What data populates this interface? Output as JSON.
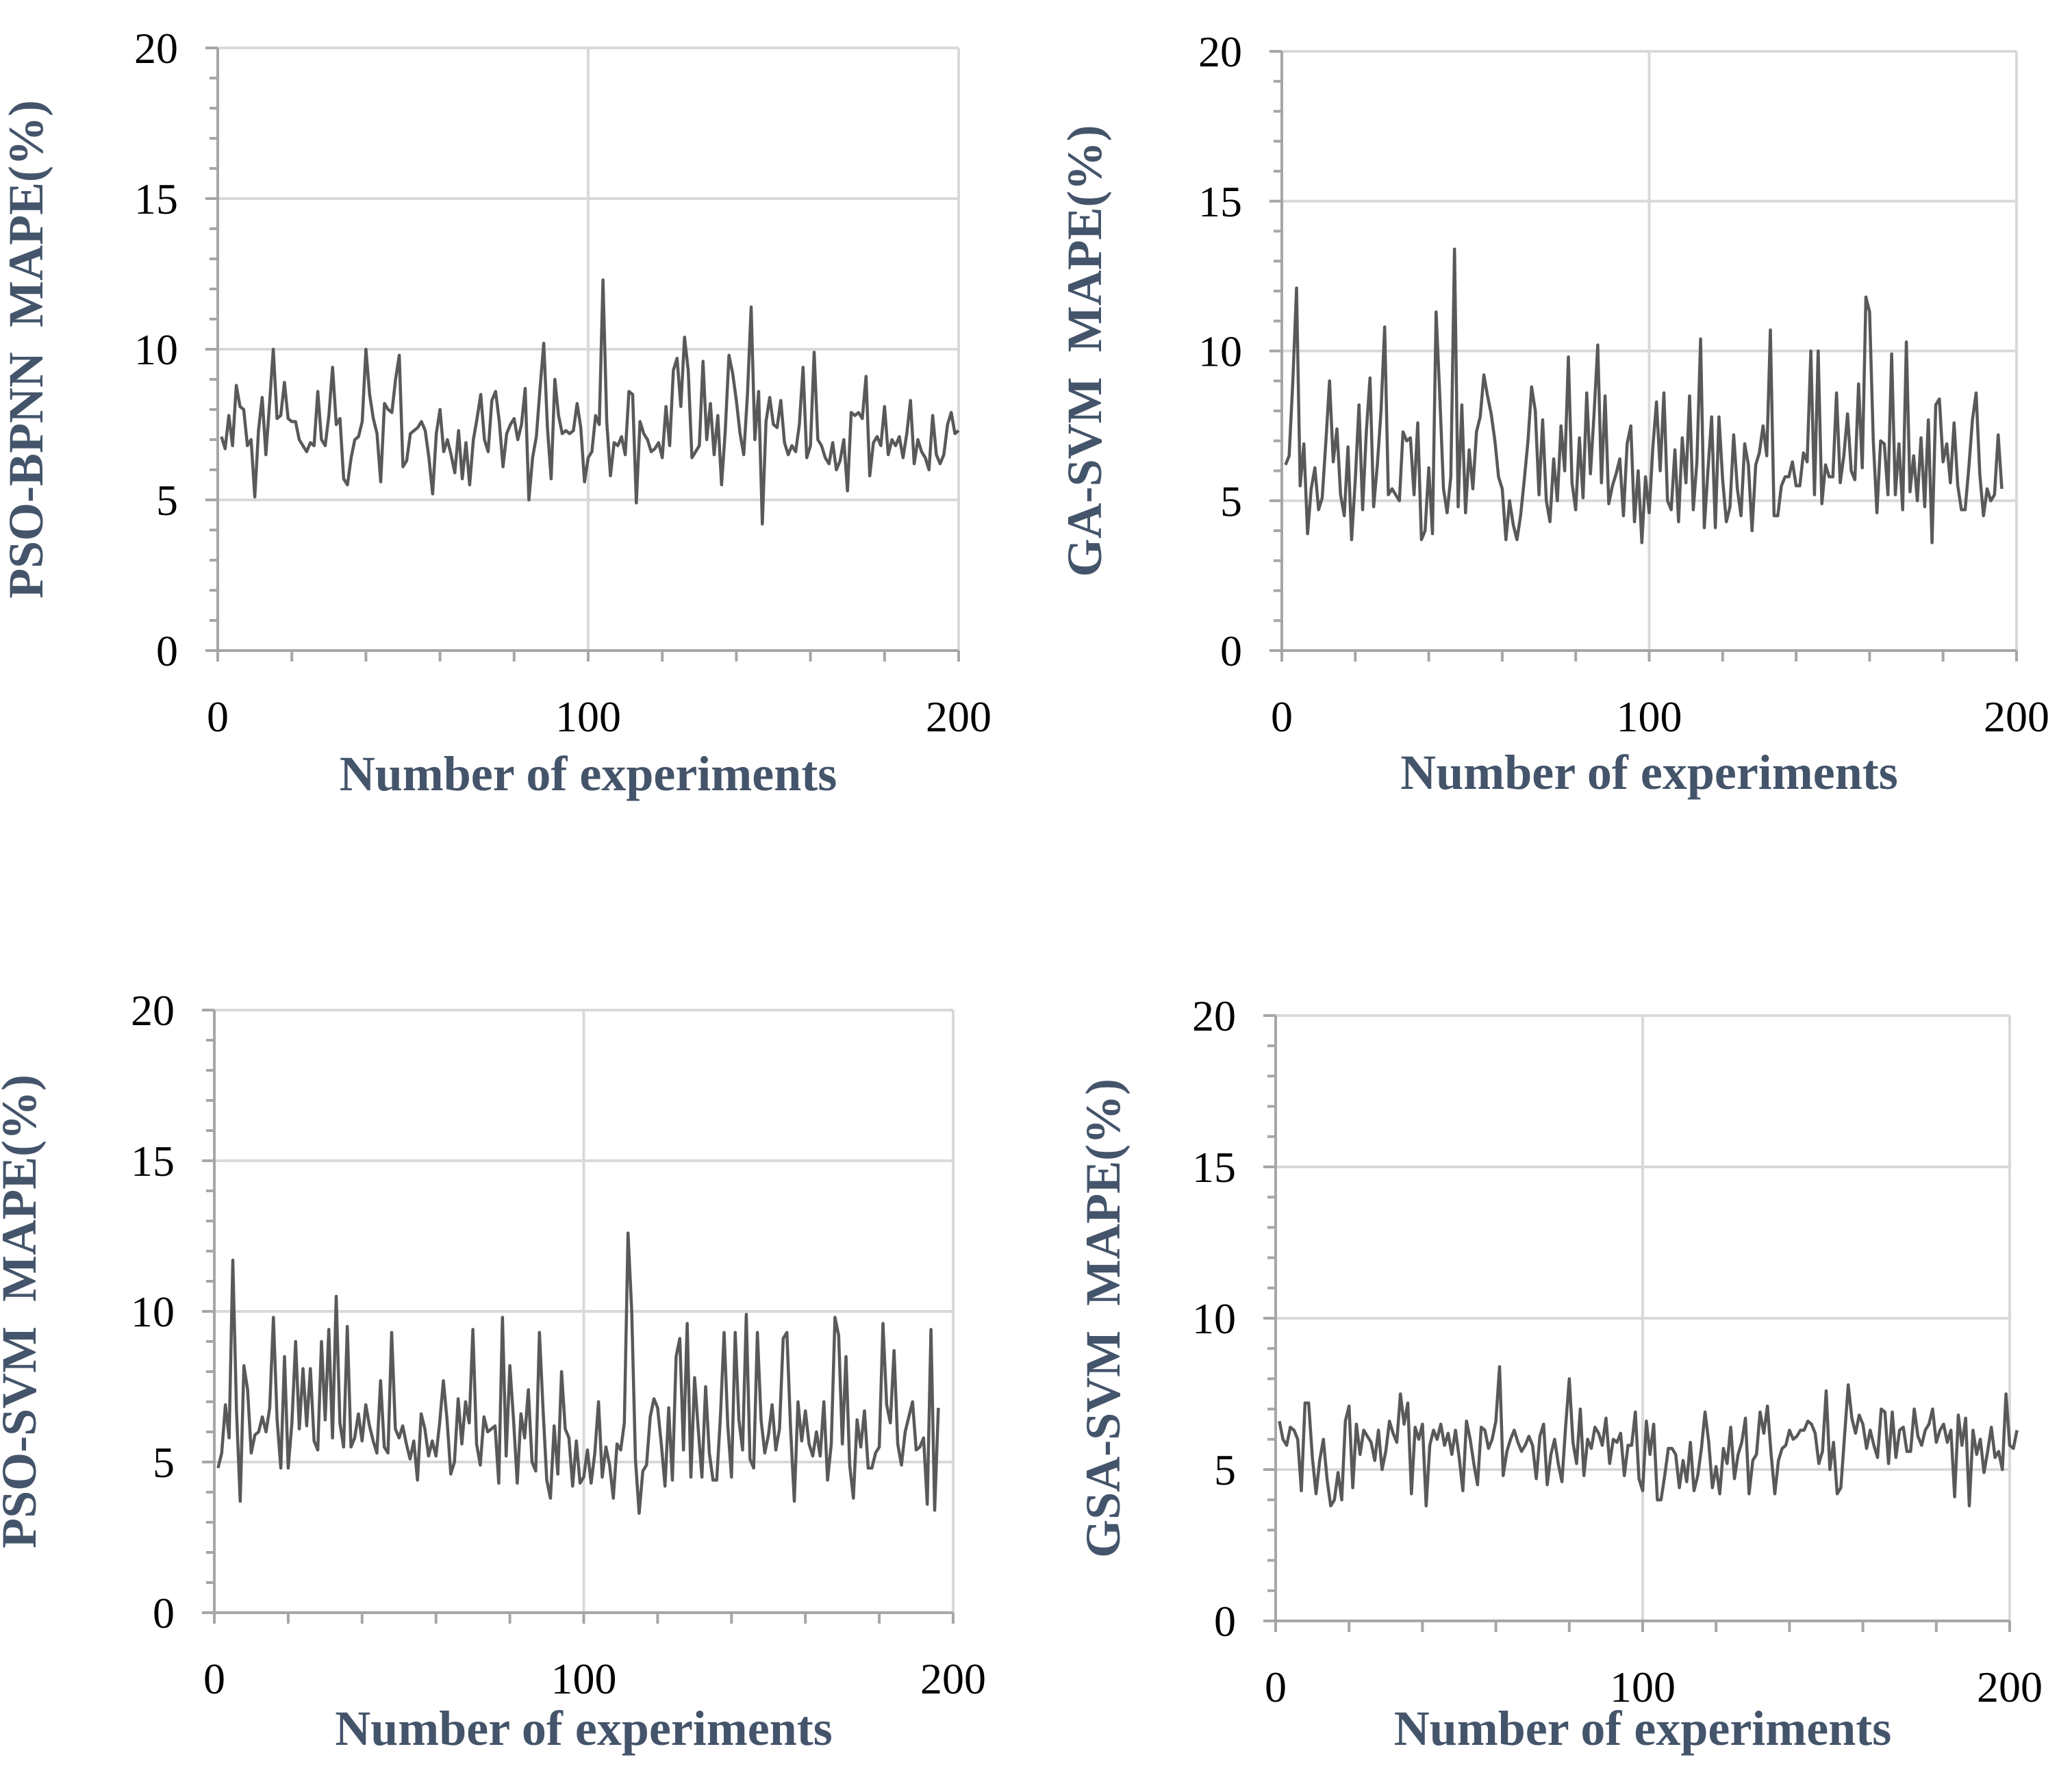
{
  "chart_data": [
    {
      "type": "line",
      "ylabel": "PSO-BPNN MAPE(%)",
      "xlabel": "Number of experiments",
      "xlim": [
        0,
        200
      ],
      "ylim": [
        0,
        20
      ],
      "xticks": [
        "0",
        "100",
        "200"
      ],
      "yticks": [
        "0",
        "5",
        "10",
        "15",
        "20"
      ],
      "grid": true,
      "line_color": "#595959",
      "series": [
        {
          "name": "PSO-BPNN",
          "x_start": 1,
          "x_step": 1,
          "values": [
            7.1,
            6.7,
            7.8,
            6.8,
            8.8,
            8.1,
            8.0,
            6.8,
            7.0,
            5.1,
            7.3,
            8.4,
            6.5,
            8.2,
            10.0,
            7.7,
            7.8,
            8.9,
            7.7,
            7.6,
            7.6,
            7.0,
            6.8,
            6.6,
            6.9,
            6.8,
            8.6,
            7.0,
            6.8,
            7.8,
            9.4,
            7.5,
            7.7,
            5.7,
            5.5,
            6.4,
            7.0,
            7.1,
            7.6,
            10.0,
            8.5,
            7.7,
            7.2,
            5.6,
            8.2,
            8.0,
            7.9,
            9.0,
            9.8,
            6.1,
            6.3,
            7.2,
            7.3,
            7.4,
            7.6,
            7.3,
            6.4,
            5.2,
            7.2,
            8.0,
            6.6,
            7.0,
            6.5,
            5.9,
            7.3,
            5.7,
            6.9,
            5.5,
            7.0,
            7.7,
            8.5,
            7.0,
            6.6,
            8.3,
            8.6,
            7.6,
            6.1,
            7.2,
            7.5,
            7.7,
            7.0,
            7.5,
            8.7,
            5.0,
            6.4,
            7.1,
            8.7,
            10.2,
            7.4,
            5.7,
            9.0,
            7.8,
            7.2,
            7.3,
            7.2,
            7.3,
            8.2,
            7.4,
            5.6,
            6.4,
            6.6,
            7.8,
            7.5,
            12.3,
            7.6,
            5.8,
            6.9,
            6.8,
            7.1,
            6.5,
            8.6,
            8.5,
            4.9,
            7.6,
            7.2,
            7.0,
            6.6,
            6.7,
            6.9,
            6.4,
            8.1,
            6.8,
            9.3,
            9.7,
            8.1,
            10.4,
            9.3,
            6.4,
            6.6,
            6.8,
            9.6,
            7.0,
            8.2,
            6.5,
            7.8,
            5.5,
            7.3,
            9.8,
            9.2,
            8.3,
            7.2,
            6.5,
            8.5,
            11.4,
            7.0,
            8.6,
            4.2,
            7.6,
            8.4,
            7.5,
            7.4,
            8.3,
            6.9,
            6.5,
            6.8,
            6.6,
            7.5,
            9.4,
            6.4,
            6.8,
            9.9,
            7.0,
            6.8,
            6.4,
            6.2,
            6.9,
            6.0,
            6.3,
            7.0,
            5.3,
            7.9,
            7.8,
            7.9,
            7.7,
            9.1,
            5.8,
            6.9,
            7.1,
            6.8,
            8.1,
            6.5,
            7.0,
            6.8,
            7.1,
            6.4,
            7.2,
            8.3,
            6.2,
            7.0,
            6.6,
            6.4,
            6.0,
            7.8,
            6.5,
            6.2,
            6.5,
            7.5,
            7.9,
            7.2,
            7.3
          ]
        }
      ]
    },
    {
      "type": "line",
      "ylabel": "GA-SVM MAPE(%)",
      "xlabel": "Number of experiments",
      "xlim": [
        0,
        200
      ],
      "ylim": [
        0,
        20
      ],
      "xticks": [
        "0",
        "100",
        "200"
      ],
      "yticks": [
        "0",
        "5",
        "10",
        "15",
        "20"
      ],
      "grid": true,
      "line_color": "#595959",
      "series": [
        {
          "name": "GA-SVM",
          "x_start": 1,
          "x_step": 1,
          "values": [
            6.2,
            6.5,
            9.0,
            12.1,
            5.5,
            6.9,
            3.9,
            5.4,
            6.1,
            4.7,
            5.1,
            7.0,
            9.0,
            6.3,
            7.4,
            5.2,
            4.5,
            6.8,
            3.7,
            5.7,
            8.2,
            4.7,
            7.3,
            9.1,
            4.8,
            6.2,
            8.0,
            10.8,
            5.2,
            5.4,
            5.2,
            5.0,
            7.3,
            7.0,
            7.1,
            5.2,
            7.6,
            3.7,
            4.0,
            6.1,
            3.9,
            11.3,
            8.5,
            5.4,
            4.6,
            5.8,
            13.4,
            4.8,
            8.2,
            4.6,
            6.7,
            5.4,
            7.3,
            7.8,
            9.2,
            8.5,
            7.9,
            7.0,
            5.8,
            5.4,
            3.7,
            5.0,
            4.2,
            3.7,
            4.5,
            5.7,
            7.0,
            8.8,
            8.0,
            5.2,
            7.7,
            5.0,
            4.3,
            6.4,
            5.0,
            7.5,
            6.0,
            9.8,
            5.6,
            4.7,
            7.1,
            5.1,
            8.6,
            5.9,
            7.9,
            10.2,
            5.6,
            8.5,
            4.9,
            5.5,
            5.9,
            6.4,
            4.5,
            6.9,
            7.5,
            4.3,
            6.0,
            3.6,
            5.8,
            4.6,
            6.8,
            8.3,
            6.0,
            8.6,
            5.0,
            4.7,
            6.7,
            4.3,
            7.1,
            5.6,
            8.5,
            4.7,
            6.3,
            10.4,
            4.1,
            6.0,
            7.8,
            4.1,
            7.8,
            5.7,
            4.3,
            4.8,
            7.2,
            5.4,
            4.5,
            6.9,
            6.2,
            4.0,
            6.2,
            6.6,
            7.5,
            6.5,
            10.7,
            4.5,
            4.5,
            5.5,
            5.8,
            5.8,
            6.3,
            5.5,
            5.5,
            6.6,
            6.3,
            10.0,
            5.2,
            10.0,
            4.9,
            6.2,
            5.8,
            5.8,
            8.6,
            5.6,
            6.5,
            7.9,
            6.0,
            5.7,
            8.9,
            6.1,
            11.8,
            11.3,
            7.0,
            4.6,
            7.0,
            6.9,
            5.2,
            9.9,
            5.2,
            6.9,
            4.7,
            10.3,
            5.3,
            6.5,
            5.0,
            7.1,
            4.8,
            7.7,
            3.6,
            8.2,
            8.4,
            6.3,
            6.9,
            5.6,
            7.6,
            5.5,
            4.7,
            4.7,
            6.1,
            7.7,
            8.6,
            5.9,
            4.5,
            5.4,
            5.0,
            5.2,
            7.2,
            5.4
          ]
        }
      ]
    },
    {
      "type": "line",
      "ylabel": "PSO-SVM MAPE(%)",
      "xlabel": "Number of experiments",
      "xlim": [
        0,
        200
      ],
      "ylim": [
        0,
        20
      ],
      "xticks": [
        "0",
        "100",
        "200"
      ],
      "yticks": [
        "0",
        "5",
        "10",
        "15",
        "20"
      ],
      "grid": true,
      "line_color": "#595959",
      "series": [
        {
          "name": "PSO-SVM",
          "x_start": 1,
          "x_step": 1,
          "values": [
            4.8,
            5.3,
            6.9,
            5.8,
            11.7,
            6.7,
            3.7,
            8.2,
            7.4,
            5.3,
            5.9,
            6.0,
            6.5,
            6.0,
            6.8,
            9.8,
            6.4,
            4.8,
            8.5,
            4.8,
            6.3,
            9.0,
            6.1,
            8.1,
            6.2,
            8.1,
            5.7,
            5.4,
            9.0,
            6.4,
            9.4,
            5.8,
            10.5,
            6.3,
            5.5,
            9.5,
            5.5,
            5.8,
            6.6,
            5.7,
            6.9,
            6.2,
            5.7,
            5.3,
            7.7,
            5.5,
            5.3,
            9.3,
            6.1,
            5.8,
            6.2,
            5.6,
            5.1,
            5.7,
            4.4,
            6.6,
            6.1,
            5.2,
            5.7,
            5.2,
            6.3,
            7.7,
            6.4,
            4.6,
            5.0,
            7.1,
            5.6,
            7.0,
            6.3,
            9.4,
            5.6,
            4.9,
            6.5,
            6.0,
            6.1,
            6.2,
            4.3,
            9.8,
            5.2,
            8.2,
            6.4,
            4.3,
            6.6,
            5.8,
            7.4,
            5.0,
            4.7,
            9.3,
            6.7,
            4.4,
            3.8,
            6.2,
            4.6,
            8.0,
            6.1,
            5.8,
            4.2,
            5.7,
            4.3,
            4.5,
            5.4,
            4.3,
            5.3,
            7.0,
            4.5,
            5.5,
            4.9,
            3.8,
            5.6,
            5.4,
            6.3,
            12.6,
            10.0,
            5.1,
            3.3,
            4.7,
            4.9,
            6.5,
            7.1,
            6.8,
            5.6,
            4.2,
            6.8,
            4.4,
            8.5,
            9.1,
            5.4,
            9.6,
            4.5,
            7.8,
            6.1,
            4.5,
            7.5,
            5.3,
            4.4,
            4.4,
            6.5,
            9.3,
            6.2,
            4.5,
            9.3,
            6.4,
            5.4,
            9.9,
            5.1,
            4.8,
            9.3,
            6.4,
            5.3,
            5.9,
            6.9,
            5.4,
            6.1,
            9.1,
            9.3,
            6.1,
            3.7,
            7.0,
            5.7,
            6.7,
            5.6,
            5.2,
            6.0,
            5.2,
            7.0,
            4.4,
            5.6,
            9.8,
            9.2,
            5.6,
            8.5,
            4.9,
            3.8,
            6.4,
            5.5,
            6.7,
            4.8,
            4.8,
            5.3,
            5.5,
            9.6,
            6.9,
            6.3,
            8.7,
            5.6,
            4.9,
            6.0,
            6.5,
            7.0,
            5.4,
            5.5,
            5.8,
            3.6,
            9.4,
            3.4,
            6.8
          ]
        }
      ]
    },
    {
      "type": "line",
      "ylabel": "GSA-SVM MAPE(%)",
      "xlabel": "Number of experiments",
      "xlim": [
        0,
        200
      ],
      "ylim": [
        0,
        20
      ],
      "xticks": [
        "0",
        "100",
        "200"
      ],
      "yticks": [
        "0",
        "5",
        "10",
        "15",
        "20"
      ],
      "grid": true,
      "line_color": "#595959",
      "series": [
        {
          "name": "GSA-SVM",
          "x_start": 1,
          "x_step": 1,
          "values": [
            6.6,
            6.0,
            5.8,
            6.4,
            6.3,
            6.0,
            4.3,
            7.2,
            7.2,
            5.4,
            4.2,
            5.3,
            6.0,
            4.7,
            3.8,
            4.0,
            4.9,
            4.0,
            6.6,
            7.1,
            4.4,
            6.5,
            5.5,
            6.3,
            6.1,
            5.9,
            5.3,
            6.3,
            5.0,
            5.6,
            6.6,
            6.2,
            5.9,
            7.5,
            6.5,
            7.2,
            4.2,
            6.4,
            6.0,
            6.5,
            3.8,
            5.8,
            6.3,
            6.0,
            6.5,
            5.8,
            6.2,
            5.5,
            6.3,
            5.4,
            4.3,
            6.6,
            6.0,
            5.2,
            4.5,
            6.4,
            6.3,
            5.7,
            6.0,
            6.6,
            8.4,
            4.8,
            5.6,
            6.0,
            6.3,
            5.9,
            5.6,
            5.8,
            6.1,
            5.8,
            4.7,
            6.1,
            6.5,
            4.5,
            5.5,
            6.0,
            5.2,
            4.6,
            6.4,
            8.0,
            5.9,
            5.2,
            7.0,
            4.8,
            6.0,
            5.7,
            6.4,
            6.2,
            5.8,
            6.7,
            5.2,
            6.0,
            5.9,
            6.2,
            4.8,
            5.8,
            5.8,
            6.9,
            4.7,
            4.3,
            6.6,
            5.5,
            6.5,
            4.0,
            4.0,
            4.8,
            5.7,
            5.7,
            5.5,
            4.4,
            5.3,
            4.6,
            5.9,
            4.3,
            4.8,
            5.7,
            6.9,
            5.9,
            4.4,
            5.1,
            4.2,
            5.7,
            5.2,
            6.4,
            4.7,
            5.5,
            5.9,
            6.7,
            4.2,
            5.3,
            5.5,
            6.9,
            6.2,
            7.1,
            5.5,
            4.2,
            5.3,
            5.7,
            5.8,
            6.3,
            6.0,
            6.1,
            6.3,
            6.3,
            6.6,
            6.5,
            6.2,
            5.2,
            5.6,
            7.6,
            5.0,
            5.9,
            4.2,
            4.4,
            6.1,
            7.8,
            6.7,
            6.2,
            6.8,
            6.5,
            5.7,
            6.3,
            5.8,
            5.4,
            7.0,
            6.9,
            5.2,
            6.9,
            5.4,
            6.3,
            6.4,
            5.6,
            5.6,
            7.0,
            6.1,
            5.8,
            6.3,
            6.5,
            7.0,
            5.9,
            6.3,
            6.5,
            5.9,
            6.3,
            4.1,
            6.8,
            5.8,
            6.7,
            3.8,
            6.3,
            5.5,
            6.0,
            4.9,
            5.6,
            6.4,
            5.4,
            5.6,
            5.0,
            7.5,
            5.8,
            5.7,
            6.3
          ]
        }
      ]
    }
  ]
}
